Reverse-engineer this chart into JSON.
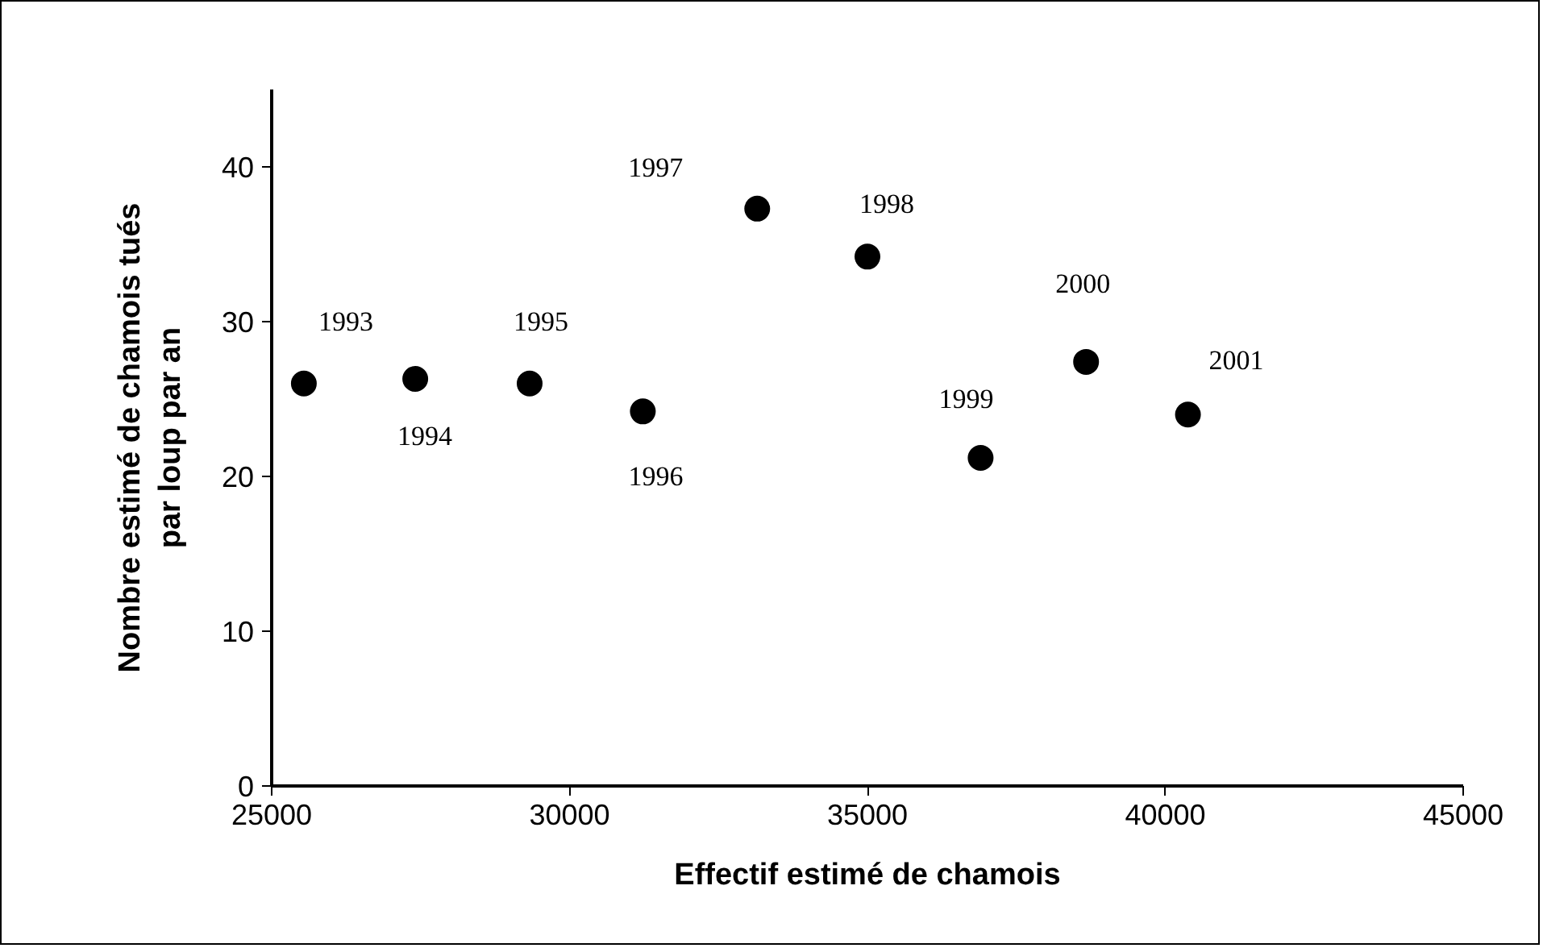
{
  "chart_data": {
    "type": "scatter",
    "xlabel": "Effectif estimé de chamois",
    "ylabel": "Nombre estimé de chamois tués\npar loup par an",
    "x": [
      25540,
      27410,
      29330,
      31230,
      33150,
      35000,
      36900,
      38670,
      40380
    ],
    "series": [
      {
        "color": "#000000",
        "values": [
          26.0,
          26.3,
          26.0,
          24.2,
          37.3,
          34.2,
          21.2,
          27.4,
          24.0
        ]
      }
    ],
    "xlim": [
      25000,
      45000
    ],
    "xticks": [
      25000,
      30000,
      35000,
      40000,
      45000
    ],
    "ylim": [
      0,
      45
    ],
    "yticks": [
      0,
      10,
      20,
      30,
      40
    ],
    "marker": "circle",
    "grid": false,
    "annotations": [
      {
        "text": "1993",
        "x": 25540,
        "y": 26.0
      },
      {
        "text": "1994",
        "x": 27410,
        "y": 26.3
      },
      {
        "text": "1995",
        "x": 29330,
        "y": 26.0
      },
      {
        "text": "1996",
        "x": 31230,
        "y": 24.2
      },
      {
        "text": "1997",
        "x": 33150,
        "y": 37.3
      },
      {
        "text": "1998",
        "x": 35000,
        "y": 34.2
      },
      {
        "text": "1999",
        "x": 36900,
        "y": 21.2
      },
      {
        "text": "2000",
        "x": 38670,
        "y": 27.4
      },
      {
        "text": "2001",
        "x": 40380,
        "y": 24.0
      }
    ]
  }
}
